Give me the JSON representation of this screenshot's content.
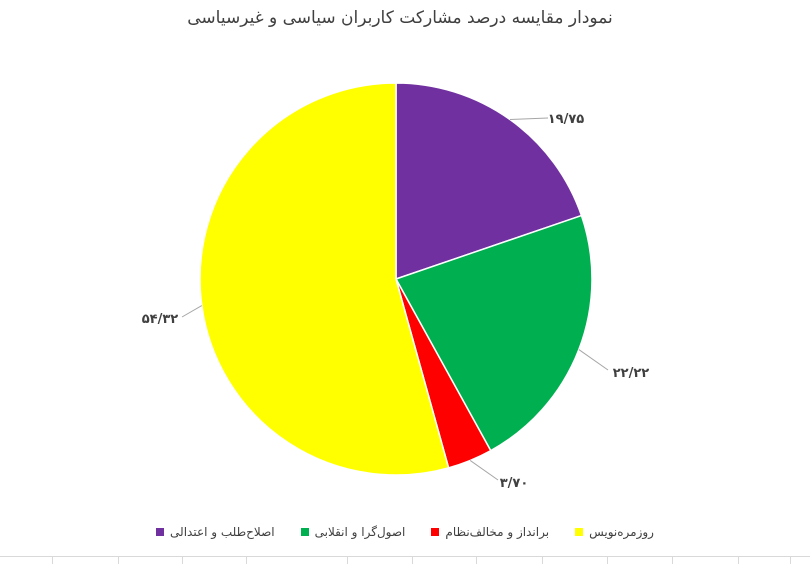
{
  "chart_data": {
    "type": "pie",
    "title": "نمودار مقایسه درصد مشارکت کاربران سیاسی و غیرسیاسی",
    "categories": [
      "اصلاح‌طلب و اعتدالی",
      "اصول‌گرا و انقلابی",
      "برانداز و مخالف‌نظام",
      "روزمره‌نویس"
    ],
    "values": [
      19.75,
      22.22,
      3.7,
      54.32
    ],
    "value_labels": [
      "۱۹/۷۵",
      "۲۲/۲۲",
      "۳/۷۰",
      "۵۴/۳۲"
    ],
    "colors": [
      "#7030a0",
      "#00b050",
      "#ff0000",
      "#ffff00"
    ],
    "legend_position": "bottom"
  }
}
